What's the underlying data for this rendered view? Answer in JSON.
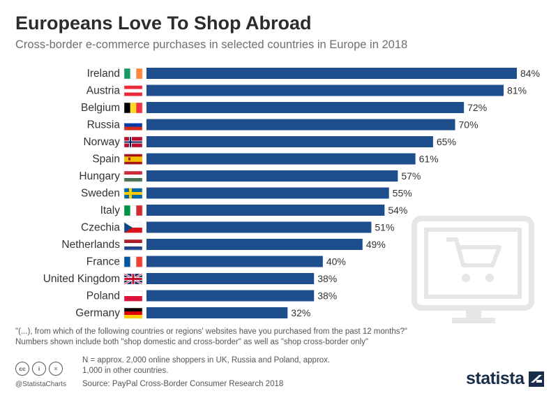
{
  "header": {
    "title": "Europeans Love To Shop Abroad",
    "subtitle": "Cross-border e-commerce purchases in selected countries in Europe in 2018"
  },
  "colors": {
    "bar": "#1f4e8c",
    "text": "#333333",
    "watermark": "#e6e6e6"
  },
  "chart_data": {
    "type": "bar",
    "orientation": "horizontal",
    "categories": [
      "Ireland",
      "Austria",
      "Belgium",
      "Russia",
      "Norway",
      "Spain",
      "Hungary",
      "Sweden",
      "Italy",
      "Czechia",
      "Netherlands",
      "France",
      "United Kingdom",
      "Poland",
      "Germany"
    ],
    "values": [
      84,
      81,
      72,
      70,
      65,
      61,
      57,
      55,
      54,
      51,
      49,
      40,
      38,
      38,
      32
    ],
    "value_labels": [
      "84%",
      "81%",
      "72%",
      "70%",
      "65%",
      "61%",
      "57%",
      "55%",
      "54%",
      "51%",
      "49%",
      "40%",
      "38%",
      "38%",
      "32%"
    ],
    "title": "Europeans Love To Shop Abroad",
    "xlabel": "",
    "ylabel": "",
    "xlim": [
      0,
      84
    ],
    "grid": false,
    "legend": "none"
  },
  "footnotes": {
    "question": "\"(...), from which of the following countries or regions' websites have you purchased from the past 12 months?\"",
    "numbers_note": "Numbers shown include both \"shop domestic and cross-border\" as well as \"shop cross-border only\"",
    "sample_line1": "N = approx. 2,000 online shoppers in UK, Russia and Poland, approx.",
    "sample_line2": "1,000 in other countries.",
    "source": "Source: PayPal Cross-Border Consumer Research 2018"
  },
  "footer": {
    "handle": "@StatistaCharts",
    "brand": "statista",
    "license_icons": [
      "cc",
      "i",
      "="
    ]
  }
}
